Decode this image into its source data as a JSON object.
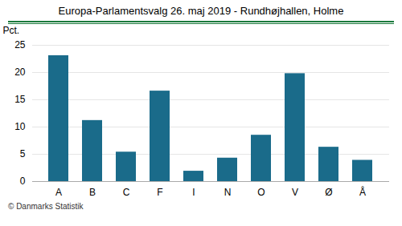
{
  "chart_data": {
    "type": "bar",
    "title": "Europa-Parlamentsvalg 26. maj 2019 - Rundhøjhallen, Holme",
    "categories": [
      "A",
      "B",
      "C",
      "F",
      "I",
      "N",
      "O",
      "V",
      "Ø",
      "Å"
    ],
    "values": [
      23.1,
      11.2,
      5.4,
      16.6,
      1.9,
      4.3,
      8.5,
      19.8,
      6.3,
      3.9
    ],
    "color": "#1a6b8a",
    "ylabel": "Pct.",
    "ylim": [
      0,
      25
    ],
    "yticks": [
      0,
      5,
      10,
      15,
      20,
      25
    ],
    "grid": true,
    "caption": "© Danmarks Statistik"
  }
}
